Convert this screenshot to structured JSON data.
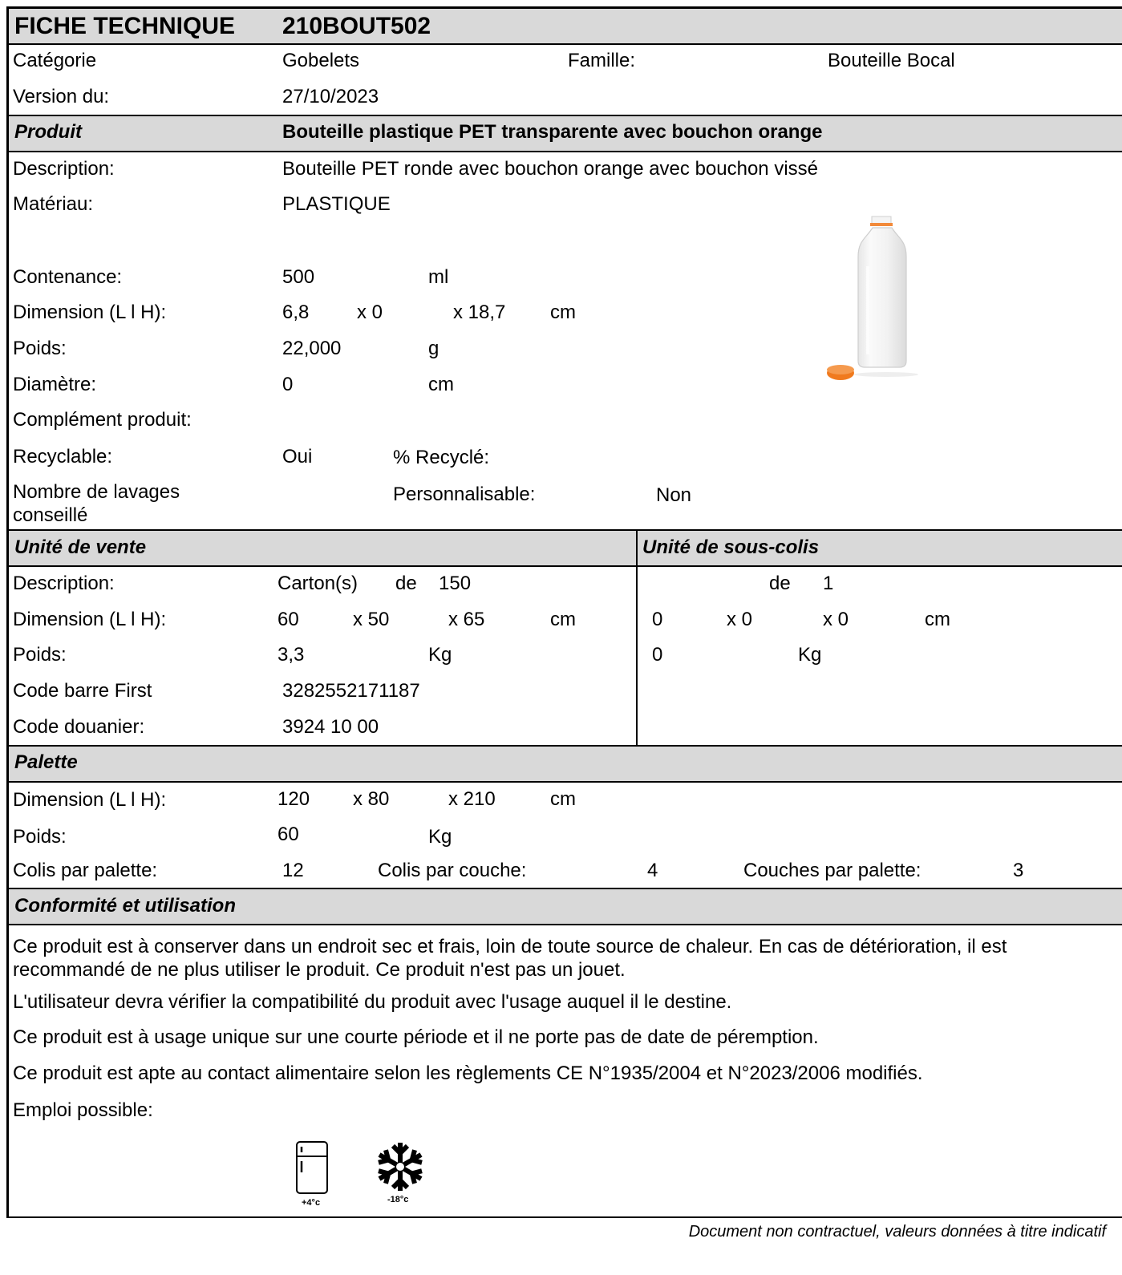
{
  "header": {
    "title": "FICHE TECHNIQUE",
    "reference": "210BOUT502"
  },
  "general": {
    "categorie_label": "Catégorie",
    "categorie_value": "Gobelets",
    "famille_label": "Famille:",
    "famille_value": "Bouteille Bocal",
    "version_label": "Version du:",
    "version_value": "27/10/2023"
  },
  "produit": {
    "section_label": "Produit",
    "name": "Bouteille plastique PET transparente avec bouchon orange",
    "description_label": "Description:",
    "description_value": "Bouteille PET ronde avec bouchon orange avec bouchon vissé",
    "materiau_label": "Matériau:",
    "materiau_value": "PLASTIQUE",
    "contenance_label": "Contenance:",
    "contenance_value": "500",
    "contenance_unit": "ml",
    "dimension_label": "Dimension (L l H):",
    "dim_l": "6,8",
    "dim_w": "x 0",
    "dim_h": "x 18,7",
    "dim_unit": "cm",
    "poids_label": "Poids:",
    "poids_value": "22,000",
    "poids_unit": "g",
    "diametre_label": "Diamètre:",
    "diametre_value": "0",
    "diametre_unit": "cm",
    "complement_label": "Complément produit:",
    "recyclable_label": "Recyclable:",
    "recyclable_value": "Oui",
    "recycle_label": "% Recyclé:",
    "lavages_label_1": "Nombre de lavages",
    "lavages_label_2": "conseillé",
    "personnalisable_label": "Personnalisable:",
    "personnalisable_value": "Non"
  },
  "unite_vente": {
    "section_label": "Unité de vente",
    "description_label": "Description:",
    "carton": "Carton(s)",
    "de": "de",
    "quantity": "150",
    "dimension_label": "Dimension (L l H):",
    "dim_l": "60",
    "dim_w": "x 50",
    "dim_h": "x 65",
    "dim_unit": "cm",
    "poids_label": "Poids:",
    "poids_value": "3,3",
    "poids_unit": "Kg",
    "barcode_label": "Code barre First",
    "barcode_value": "3282552171187",
    "douanier_label": "Code douanier:",
    "douanier_value": "3924 10 00"
  },
  "sous_colis": {
    "section_label": "Unité de sous-colis",
    "de": "de",
    "quantity": "1",
    "dim_l": "0",
    "dim_w": "x 0",
    "dim_h": "x 0",
    "dim_unit": "cm",
    "poids_value": "0",
    "poids_unit": "Kg"
  },
  "palette": {
    "section_label": "Palette",
    "dimension_label": "Dimension (L l H):",
    "dim_l": "120",
    "dim_w": "x 80",
    "dim_h": "x 210",
    "dim_unit": "cm",
    "poids_label": "Poids:",
    "poids_value": "60",
    "poids_unit": "Kg",
    "colis_palette_label": "Colis par palette:",
    "colis_palette_value": "12",
    "colis_couche_label": "Colis par couche:",
    "colis_couche_value": "4",
    "couches_label": "Couches par palette:",
    "couches_value": "3"
  },
  "conformite": {
    "section_label": "Conformité et utilisation",
    "p1_line1": "Ce produit est à conserver dans un endroit sec et frais, loin de toute source de chaleur. En cas de détérioration, il est",
    "p1_line2": "recommandé de ne plus utiliser le produit.  Ce produit n'est pas un jouet.",
    "p2": "L'utilisateur devra vérifier la compatibilité du produit avec l'usage auquel il le destine.",
    "p3": "Ce produit est à usage unique sur une courte période et il ne porte pas de date de péremption.",
    "p4": "Ce produit est apte au contact alimentaire selon les règlements CE N°1935/2004 et N°2023/2006 modifiés.",
    "emploi_label": "Emploi possible:",
    "icons": [
      {
        "name": "fridge-icon",
        "caption": "+4°c"
      },
      {
        "name": "snowflake-icon",
        "caption": "-18°c"
      }
    ]
  },
  "footer": {
    "disclaimer": "Document non contractuel, valeurs données à titre indicatif"
  },
  "colors": {
    "band": "#d9d9d9",
    "cap": "#f07a1e",
    "border": "#000000"
  }
}
